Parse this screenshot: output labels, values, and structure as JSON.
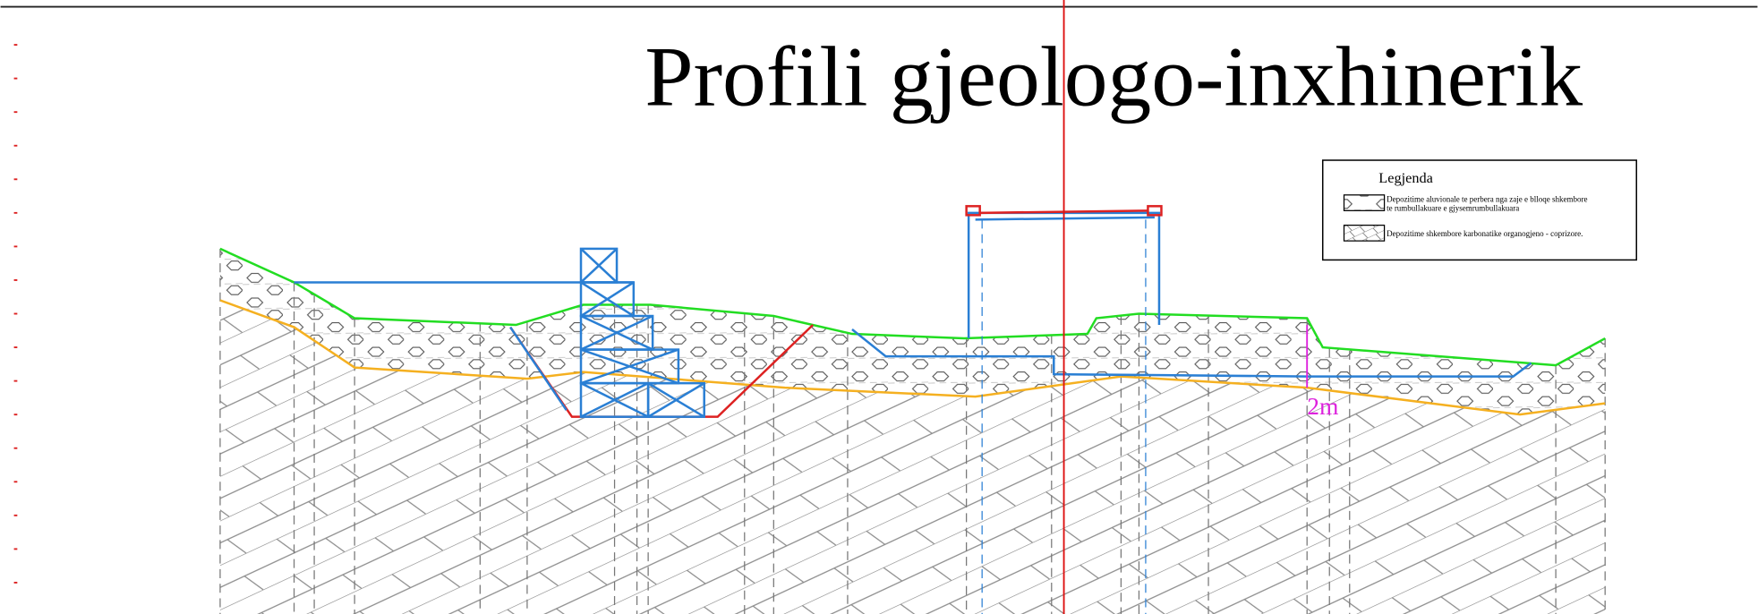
{
  "title": "Profili gjeologo-inxhinerik",
  "legend": {
    "title": "Legjenda",
    "items": [
      {
        "lines": [
          "Depozitime aluvionale te perbera nga zaje e blloqe shkembore",
          "te rumbullakuare e gjysemrumbullakuara"
        ]
      },
      {
        "lines": [
          "Depozitime shkembore karbonatike organogjeno - coprizore."
        ]
      }
    ]
  },
  "annotation": "2m"
}
